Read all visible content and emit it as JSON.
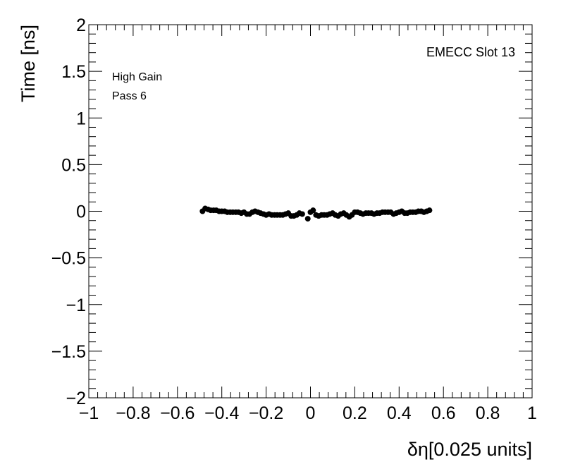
{
  "chart_data": {
    "type": "scatter",
    "title": "",
    "xlabel": "δη[0.025 units]",
    "ylabel": "Time [ns]",
    "xlim": [
      -1,
      1
    ],
    "ylim": [
      -2,
      2
    ],
    "x_ticks": [
      -1,
      -0.8,
      -0.6,
      -0.4,
      -0.2,
      0,
      0.2,
      0.4,
      0.6,
      0.8,
      1
    ],
    "x_tick_labels": [
      "−1",
      "−0.8",
      "−0.6",
      "−0.4",
      "−0.2",
      "0",
      "0.2",
      "0.4",
      "0.6",
      "0.8",
      "1"
    ],
    "y_ticks": [
      -2,
      -1.5,
      -1,
      -0.5,
      0,
      0.5,
      1,
      1.5,
      2
    ],
    "y_tick_labels": [
      "−2",
      "−1.5",
      "−1",
      "−0.5",
      "0",
      "0.5",
      "1",
      "1.5",
      "2"
    ],
    "grid": false,
    "marker_color": "#000000",
    "annotations": {
      "gain": "High Gain",
      "pass": "Pass 6",
      "slot": "EMECC Slot 13"
    },
    "points": [
      {
        "x": -0.487,
        "y": 0.0
      },
      {
        "x": -0.475,
        "y": 0.03
      },
      {
        "x": -0.462,
        "y": 0.02
      },
      {
        "x": -0.45,
        "y": 0.01
      },
      {
        "x": -0.437,
        "y": 0.01
      },
      {
        "x": -0.425,
        "y": 0.01
      },
      {
        "x": -0.412,
        "y": 0.0
      },
      {
        "x": -0.4,
        "y": 0.0
      },
      {
        "x": -0.387,
        "y": 0.0
      },
      {
        "x": -0.375,
        "y": -0.01
      },
      {
        "x": -0.362,
        "y": -0.01
      },
      {
        "x": -0.35,
        "y": -0.01
      },
      {
        "x": -0.337,
        "y": -0.01
      },
      {
        "x": -0.325,
        "y": -0.01
      },
      {
        "x": -0.312,
        "y": -0.02
      },
      {
        "x": -0.3,
        "y": -0.01
      },
      {
        "x": -0.287,
        "y": -0.03
      },
      {
        "x": -0.275,
        "y": -0.03
      },
      {
        "x": -0.262,
        "y": -0.01
      },
      {
        "x": -0.25,
        "y": 0.0
      },
      {
        "x": -0.237,
        "y": -0.01
      },
      {
        "x": -0.225,
        "y": -0.02
      },
      {
        "x": -0.212,
        "y": -0.03
      },
      {
        "x": -0.2,
        "y": -0.04
      },
      {
        "x": -0.187,
        "y": -0.03
      },
      {
        "x": -0.175,
        "y": -0.04
      },
      {
        "x": -0.162,
        "y": -0.04
      },
      {
        "x": -0.15,
        "y": -0.04
      },
      {
        "x": -0.137,
        "y": -0.04
      },
      {
        "x": -0.125,
        "y": -0.04
      },
      {
        "x": -0.112,
        "y": -0.03
      },
      {
        "x": -0.1,
        "y": -0.02
      },
      {
        "x": -0.087,
        "y": -0.05
      },
      {
        "x": -0.075,
        "y": -0.05
      },
      {
        "x": -0.062,
        "y": -0.04
      },
      {
        "x": -0.05,
        "y": -0.02
      },
      {
        "x": -0.037,
        "y": -0.03
      },
      {
        "x": -0.012,
        "y": -0.08
      },
      {
        "x": 0.0,
        "y": -0.01
      },
      {
        "x": 0.012,
        "y": 0.01
      },
      {
        "x": 0.025,
        "y": -0.04
      },
      {
        "x": 0.037,
        "y": -0.05
      },
      {
        "x": 0.05,
        "y": -0.04
      },
      {
        "x": 0.062,
        "y": -0.04
      },
      {
        "x": 0.075,
        "y": -0.04
      },
      {
        "x": 0.087,
        "y": -0.03
      },
      {
        "x": 0.1,
        "y": -0.02
      },
      {
        "x": 0.112,
        "y": -0.04
      },
      {
        "x": 0.125,
        "y": -0.05
      },
      {
        "x": 0.137,
        "y": -0.03
      },
      {
        "x": 0.15,
        "y": -0.02
      },
      {
        "x": 0.162,
        "y": -0.04
      },
      {
        "x": 0.175,
        "y": -0.06
      },
      {
        "x": 0.187,
        "y": -0.04
      },
      {
        "x": 0.2,
        "y": -0.01
      },
      {
        "x": 0.212,
        "y": -0.01
      },
      {
        "x": 0.225,
        "y": -0.02
      },
      {
        "x": 0.237,
        "y": -0.03
      },
      {
        "x": 0.25,
        "y": -0.02
      },
      {
        "x": 0.262,
        "y": -0.02
      },
      {
        "x": 0.275,
        "y": -0.02
      },
      {
        "x": 0.287,
        "y": -0.03
      },
      {
        "x": 0.3,
        "y": -0.02
      },
      {
        "x": 0.312,
        "y": -0.02
      },
      {
        "x": 0.325,
        "y": -0.01
      },
      {
        "x": 0.337,
        "y": -0.01
      },
      {
        "x": 0.35,
        "y": -0.01
      },
      {
        "x": 0.362,
        "y": -0.01
      },
      {
        "x": 0.375,
        "y": -0.03
      },
      {
        "x": 0.387,
        "y": -0.02
      },
      {
        "x": 0.4,
        "y": -0.01
      },
      {
        "x": 0.412,
        "y": 0.0
      },
      {
        "x": 0.425,
        "y": -0.02
      },
      {
        "x": 0.437,
        "y": -0.02
      },
      {
        "x": 0.45,
        "y": -0.01
      },
      {
        "x": 0.462,
        "y": -0.01
      },
      {
        "x": 0.475,
        "y": -0.01
      },
      {
        "x": 0.487,
        "y": 0.0
      },
      {
        "x": 0.5,
        "y": 0.0
      },
      {
        "x": 0.512,
        "y": -0.01
      },
      {
        "x": 0.525,
        "y": 0.0
      },
      {
        "x": 0.537,
        "y": 0.01
      }
    ]
  }
}
